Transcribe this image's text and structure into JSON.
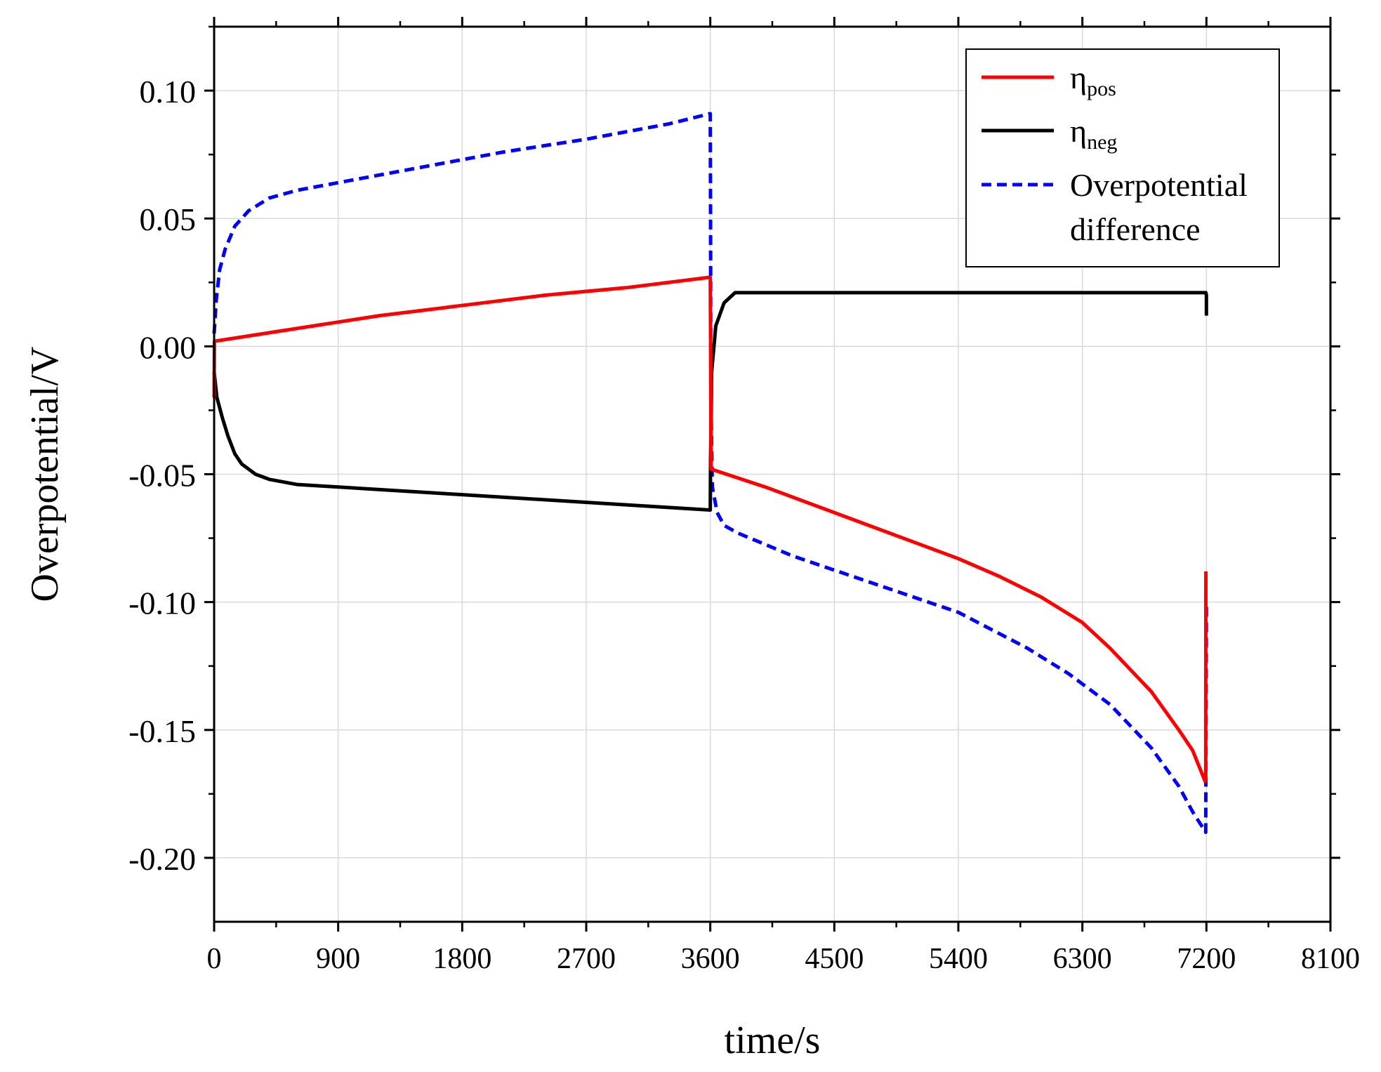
{
  "chart_data": {
    "type": "line",
    "title": "",
    "xlabel": "time/s",
    "ylabel": "Overpotential/V",
    "xlim": [
      0,
      8100
    ],
    "ylim": [
      -0.225,
      0.125
    ],
    "grid": true,
    "legend_position": "top-right",
    "x_ticks": [
      0,
      900,
      1800,
      2700,
      3600,
      4500,
      5400,
      6300,
      7200,
      8100
    ],
    "x_tick_labels": [
      "0",
      "900",
      "1800",
      "2700",
      "3600",
      "4500",
      "5400",
      "6300",
      "7200",
      "8100"
    ],
    "y_ticks": [
      0.1,
      0.05,
      0.0,
      -0.05,
      -0.1,
      -0.15,
      -0.2
    ],
    "y_tick_labels": [
      "0.10",
      "0.05",
      "0.00",
      "-0.05",
      "-0.10",
      "-0.15",
      "-0.20"
    ],
    "series": [
      {
        "name": "η_pos",
        "legend_main": "η",
        "legend_sub": "pos",
        "color": "#ff0000",
        "dash": "solid",
        "points": [
          [
            0,
            -0.02
          ],
          [
            2,
            0.002
          ],
          [
            600,
            0.007
          ],
          [
            1200,
            0.012
          ],
          [
            1800,
            0.016
          ],
          [
            2400,
            0.02
          ],
          [
            3000,
            0.023
          ],
          [
            3595,
            0.027
          ],
          [
            3600,
            0.027
          ],
          [
            3602,
            0.003
          ],
          [
            3606,
            -0.048
          ],
          [
            4000,
            -0.055
          ],
          [
            4500,
            -0.065
          ],
          [
            5000,
            -0.075
          ],
          [
            5400,
            -0.083
          ],
          [
            5700,
            -0.09
          ],
          [
            6000,
            -0.098
          ],
          [
            6300,
            -0.108
          ],
          [
            6500,
            -0.118
          ],
          [
            6800,
            -0.135
          ],
          [
            7000,
            -0.15
          ],
          [
            7100,
            -0.158
          ],
          [
            7190,
            -0.17
          ],
          [
            7195,
            -0.168
          ],
          [
            7196,
            -0.088
          ]
        ]
      },
      {
        "name": "η_neg",
        "legend_main": "η",
        "legend_sub": "neg",
        "color": "#000000",
        "dash": "solid",
        "points": [
          [
            0,
            -0.01
          ],
          [
            20,
            -0.02
          ],
          [
            60,
            -0.028
          ],
          [
            100,
            -0.035
          ],
          [
            150,
            -0.042
          ],
          [
            200,
            -0.046
          ],
          [
            300,
            -0.05
          ],
          [
            400,
            -0.052
          ],
          [
            600,
            -0.054
          ],
          [
            1200,
            -0.056
          ],
          [
            1800,
            -0.058
          ],
          [
            2400,
            -0.06
          ],
          [
            3000,
            -0.062
          ],
          [
            3600,
            -0.064
          ],
          [
            3602,
            -0.045
          ],
          [
            3610,
            -0.01
          ],
          [
            3640,
            0.008
          ],
          [
            3700,
            0.017
          ],
          [
            3780,
            0.021
          ],
          [
            5400,
            0.021
          ],
          [
            7196,
            0.021
          ],
          [
            7200,
            0.02
          ],
          [
            7200,
            0.012
          ]
        ]
      },
      {
        "name": "Overpotential difference",
        "legend_line1": "Overpotential",
        "legend_line2": "difference",
        "color": "#0000ff",
        "dash": "dashed",
        "points": [
          [
            0,
            0.005
          ],
          [
            15,
            0.018
          ],
          [
            40,
            0.03
          ],
          [
            80,
            0.038
          ],
          [
            150,
            0.047
          ],
          [
            250,
            0.053
          ],
          [
            400,
            0.058
          ],
          [
            600,
            0.061
          ],
          [
            900,
            0.064
          ],
          [
            1500,
            0.07
          ],
          [
            2100,
            0.076
          ],
          [
            2700,
            0.081
          ],
          [
            3300,
            0.087
          ],
          [
            3600,
            0.091
          ],
          [
            3602,
            0.05
          ],
          [
            3604,
            -0.02
          ],
          [
            3615,
            -0.055
          ],
          [
            3650,
            -0.065
          ],
          [
            3700,
            -0.07
          ],
          [
            3800,
            -0.073
          ],
          [
            4200,
            -0.082
          ],
          [
            4800,
            -0.093
          ],
          [
            5400,
            -0.104
          ],
          [
            5900,
            -0.118
          ],
          [
            6200,
            -0.128
          ],
          [
            6500,
            -0.14
          ],
          [
            6800,
            -0.157
          ],
          [
            7000,
            -0.172
          ],
          [
            7100,
            -0.182
          ],
          [
            7195,
            -0.19
          ],
          [
            7200,
            -0.1
          ]
        ]
      }
    ]
  }
}
